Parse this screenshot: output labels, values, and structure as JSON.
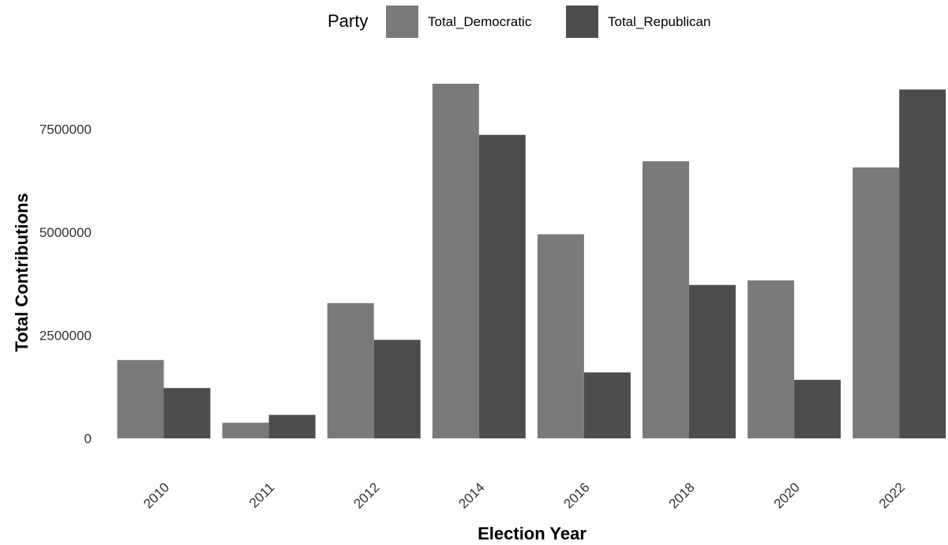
{
  "chart_data": {
    "type": "bar",
    "xlabel": "Election Year",
    "ylabel": "Total Contributions",
    "categories": [
      "2010",
      "2011",
      "2012",
      "2014",
      "2016",
      "2018",
      "2020",
      "2022"
    ],
    "series": [
      {
        "name": "Total_Democratic",
        "color": "#7a7a7a",
        "values": [
          1900000,
          380000,
          3280000,
          8600000,
          4950000,
          6720000,
          3830000,
          6570000
        ]
      },
      {
        "name": "Total_Republican",
        "color": "#4d4d4d",
        "values": [
          1220000,
          570000,
          2390000,
          7360000,
          1600000,
          3720000,
          1420000,
          8460000
        ]
      }
    ],
    "ylim": [
      0,
      8600000
    ],
    "yticks": [
      0,
      2500000,
      5000000,
      7500000
    ],
    "ytick_labels": [
      "0",
      "2500000",
      "5000000",
      "7500000"
    ],
    "legend": {
      "title": "Party",
      "position": "top"
    },
    "grid": false
  }
}
